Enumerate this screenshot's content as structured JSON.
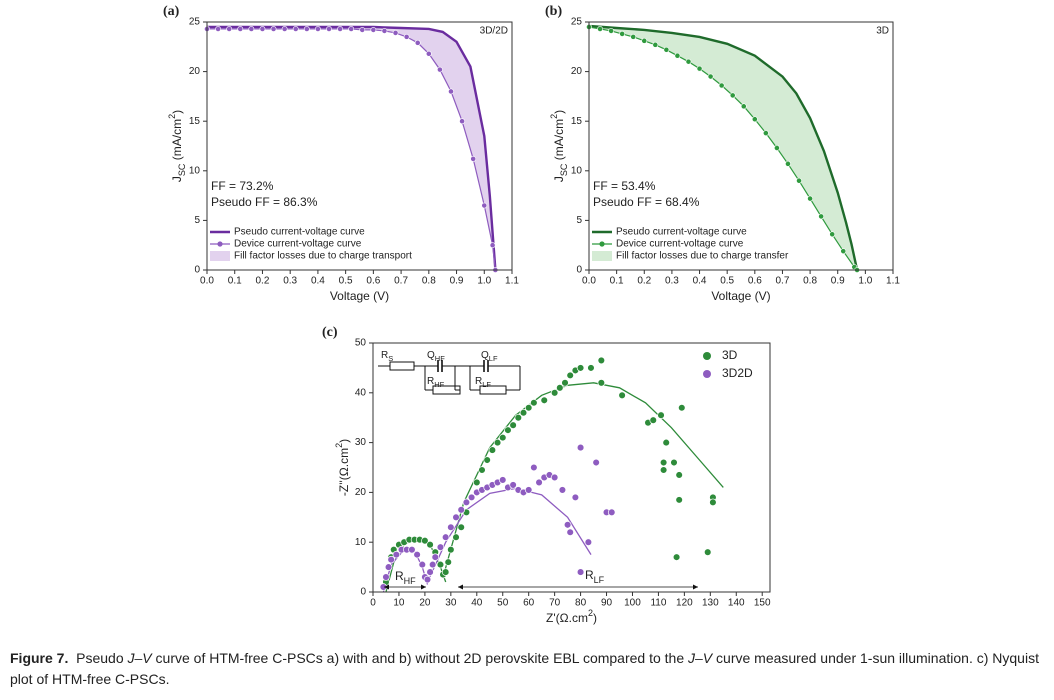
{
  "chart_data": [
    {
      "type": "line",
      "label": "(a)",
      "annotation": "3D/2D",
      "ff_texts": [
        "FF = 73.2%",
        "Pseudo FF = 86.3%"
      ],
      "xlabel": "Voltage (V)",
      "ylabel": [
        {
          "text": "J"
        },
        {
          "text": "SC",
          "script": "sub"
        },
        {
          "text": " (mA/cm"
        },
        {
          "text": "2",
          "script": "sup"
        },
        {
          "text": ")"
        }
      ],
      "xlim": [
        0,
        1.1
      ],
      "ylim": [
        0,
        25
      ],
      "xticks": [
        {
          "value": 0,
          "label": "0.0"
        },
        0.1,
        0.2,
        0.3,
        0.4,
        0.5,
        0.6,
        0.7,
        0.8,
        0.9,
        {
          "value": 1,
          "label": "1.0"
        },
        1.1
      ],
      "yticks": [
        0,
        5,
        10,
        15,
        20,
        25
      ],
      "series": [
        {
          "name": "Pseudo current-voltage curve",
          "color": "#6a2c9f",
          "marker": false,
          "x": [
            0,
            0.1,
            0.2,
            0.3,
            0.4,
            0.5,
            0.6,
            0.7,
            0.8,
            0.85,
            0.9,
            0.95,
            1.0,
            1.02,
            1.04
          ],
          "values": [
            24.5,
            24.5,
            24.5,
            24.5,
            24.5,
            24.5,
            24.5,
            24.4,
            24.3,
            24.0,
            23.0,
            20.5,
            13.5,
            7.5,
            0
          ]
        },
        {
          "name": "Device current-voltage curve",
          "color": "#8e5cbf",
          "marker": true,
          "x": [
            0,
            0.04,
            0.08,
            0.12,
            0.16,
            0.2,
            0.24,
            0.28,
            0.32,
            0.36,
            0.4,
            0.44,
            0.48,
            0.52,
            0.56,
            0.6,
            0.64,
            0.68,
            0.72,
            0.76,
            0.8,
            0.84,
            0.88,
            0.92,
            0.96,
            1.0,
            1.03,
            1.04
          ],
          "values": [
            24.3,
            24.3,
            24.3,
            24.3,
            24.3,
            24.3,
            24.3,
            24.3,
            24.3,
            24.3,
            24.3,
            24.3,
            24.3,
            24.3,
            24.2,
            24.2,
            24.1,
            23.9,
            23.5,
            22.9,
            21.8,
            20.2,
            18.0,
            15.0,
            11.2,
            6.5,
            2.5,
            0
          ]
        }
      ],
      "fill": {
        "name": "Fill factor losses due to charge transport",
        "color": "#e2d2ee"
      }
    },
    {
      "type": "line",
      "label": "(b)",
      "annotation": "3D",
      "ff_texts": [
        "FF = 53.4%",
        "Pseudo FF = 68.4%"
      ],
      "xlabel": "Voltage (V)",
      "ylabel": [
        {
          "text": "J"
        },
        {
          "text": "SC",
          "script": "sub"
        },
        {
          "text": " (mA/cm"
        },
        {
          "text": "2",
          "script": "sup"
        },
        {
          "text": ")"
        }
      ],
      "xlim": [
        0,
        1.1
      ],
      "ylim": [
        0,
        25
      ],
      "xticks": [
        {
          "value": 0,
          "label": "0.0"
        },
        0.1,
        0.2,
        0.3,
        0.4,
        0.5,
        0.6,
        0.7,
        0.8,
        0.9,
        {
          "value": 1,
          "label": "1.0"
        },
        1.1
      ],
      "yticks": [
        0,
        5,
        10,
        15,
        20,
        25
      ],
      "series": [
        {
          "name": "Pseudo current-voltage curve",
          "color": "#1f6b2b",
          "marker": false,
          "x": [
            0,
            0.1,
            0.2,
            0.3,
            0.4,
            0.5,
            0.6,
            0.7,
            0.75,
            0.8,
            0.85,
            0.9,
            0.93,
            0.95,
            0.97
          ],
          "values": [
            24.6,
            24.4,
            24.2,
            23.9,
            23.5,
            22.8,
            21.6,
            19.5,
            17.8,
            15.3,
            12.0,
            7.8,
            4.8,
            2.6,
            0
          ]
        },
        {
          "name": "Device current-voltage curve",
          "color": "#2f9a3e",
          "marker": true,
          "x": [
            0,
            0.04,
            0.08,
            0.12,
            0.16,
            0.2,
            0.24,
            0.28,
            0.32,
            0.36,
            0.4,
            0.44,
            0.48,
            0.52,
            0.56,
            0.6,
            0.64,
            0.68,
            0.72,
            0.76,
            0.8,
            0.84,
            0.88,
            0.92,
            0.96,
            0.97
          ],
          "values": [
            24.5,
            24.3,
            24.1,
            23.8,
            23.5,
            23.1,
            22.7,
            22.2,
            21.6,
            21.0,
            20.3,
            19.5,
            18.6,
            17.6,
            16.5,
            15.2,
            13.8,
            12.3,
            10.7,
            9.0,
            7.2,
            5.4,
            3.6,
            1.9,
            0.3,
            0
          ]
        }
      ],
      "fill": {
        "name": "Fill factor losses due to charge transfer",
        "color": "#d4ebd4"
      }
    },
    {
      "type": "scatter",
      "label": "(c)",
      "xlabel": [
        {
          "text": "Z'(Ω.cm"
        },
        {
          "text": "2",
          "script": "sup"
        },
        {
          "text": ")"
        }
      ],
      "ylabel": [
        {
          "text": "-Z''(Ω.cm"
        },
        {
          "text": "2",
          "script": "sup"
        },
        {
          "text": ")"
        }
      ],
      "xlim": [
        0,
        153
      ],
      "ylim": [
        0,
        50
      ],
      "xticks": [
        0,
        10,
        20,
        30,
        40,
        50,
        60,
        70,
        80,
        90,
        100,
        110,
        120,
        130,
        140,
        150
      ],
      "yticks": [
        0,
        10,
        20,
        30,
        40,
        50
      ],
      "series": [
        {
          "name": "3D",
          "color": "#2e8b3a",
          "x": [
            5,
            6,
            7,
            8,
            10,
            12,
            14,
            16,
            18,
            20,
            22,
            24,
            26,
            27,
            28,
            29,
            30,
            32,
            34,
            36,
            38,
            40,
            42,
            44,
            46,
            48,
            50,
            52,
            54,
            56,
            58,
            60,
            62,
            66,
            70,
            72,
            74,
            76,
            78,
            80,
            84,
            88,
            88,
            96,
            106,
            108,
            111,
            113,
            112,
            112,
            116,
            119,
            118,
            118,
            117,
            129,
            131,
            131
          ],
          "values": [
            2,
            5,
            7,
            8.5,
            9.5,
            10,
            10.5,
            10.5,
            10.5,
            10.3,
            9.5,
            8,
            5.5,
            3.5,
            4,
            6,
            8.5,
            11,
            13,
            16,
            19,
            22,
            24.5,
            26.5,
            28.5,
            30,
            31,
            32.5,
            33.5,
            35,
            36,
            37,
            38,
            38.5,
            40,
            41,
            42,
            43.5,
            44.5,
            45,
            45,
            46.5,
            42,
            39.5,
            34,
            34.5,
            35.5,
            30,
            26,
            24.5,
            26,
            37,
            23.5,
            18.5,
            7,
            8,
            19,
            18
          ],
          "fit": {
            "x": [
              5,
              8,
              12,
              17,
              22,
              26,
              28,
              null,
              27,
              35,
              45,
              55,
              65,
              75,
              85,
              95,
              105,
              115,
              125,
              135
            ],
            "values": [
              0,
              6,
              9.5,
              10.8,
              9.5,
              5,
              2,
              null,
              3,
              18,
              29,
              35.5,
              39.5,
              41.5,
              42,
              41,
              38,
              33,
              27,
              21
            ]
          }
        },
        {
          "name": "3D2D",
          "color": "#8e5cc0",
          "x": [
            4,
            5,
            6,
            7,
            9,
            11,
            13,
            15,
            17,
            19,
            20,
            21,
            22,
            23,
            24,
            26,
            28,
            30,
            32,
            34,
            36,
            38,
            40,
            42,
            44,
            46,
            48,
            50,
            52,
            54,
            56,
            58,
            60,
            62,
            64,
            66,
            68,
            70,
            73,
            75,
            76,
            78,
            80,
            83,
            86,
            90,
            92,
            80
          ],
          "values": [
            1,
            3,
            5,
            6.5,
            7.5,
            8.5,
            8.5,
            8.5,
            7.5,
            5.5,
            3,
            2.5,
            4,
            5.5,
            7,
            9,
            11,
            13,
            15,
            16.5,
            18,
            19,
            20,
            20.5,
            21,
            21.5,
            22,
            22.5,
            21,
            21.5,
            20.5,
            20,
            20.5,
            25,
            22,
            23,
            23.5,
            23,
            20.5,
            13.5,
            12,
            19,
            29,
            10,
            26,
            16,
            16,
            4
          ],
          "fit": {
            "x": [
              4,
              7,
              12,
              16,
              19,
              21,
              null,
              21,
              28,
              36,
              45,
              55,
              65,
              75,
              84
            ],
            "values": [
              0,
              5.5,
              8.5,
              8.3,
              5,
              1.5,
              null,
              2,
              10,
              16.5,
              19.8,
              20.8,
              19.5,
              15,
              7.5
            ]
          }
        }
      ],
      "circuit_labels": [
        [
          {
            "text": "R"
          },
          {
            "text": "S",
            "script": "sub"
          }
        ],
        [
          {
            "text": "Q"
          },
          {
            "text": "HF",
            "script": "sub"
          }
        ],
        [
          {
            "text": "Q"
          },
          {
            "text": "LF",
            "script": "sub"
          }
        ],
        [
          {
            "text": "R"
          },
          {
            "text": "HF",
            "script": "sub"
          }
        ],
        [
          {
            "text": "R"
          },
          {
            "text": "LF",
            "script": "sub"
          }
        ]
      ],
      "annotations": [
        [
          {
            "text": "R"
          },
          {
            "text": "HF",
            "script": "sub"
          }
        ],
        [
          {
            "text": "R"
          },
          {
            "text": "LF",
            "script": "sub"
          }
        ]
      ]
    }
  ],
  "caption": [
    {
      "text": "Figure 7.",
      "style": "bold"
    },
    {
      "text": "  Pseudo "
    },
    {
      "text": "J–V",
      "style": "italic"
    },
    {
      "text": " curve of HTM-free C-PSCs a) with and b) without 2D perovskite EBL compared to the "
    },
    {
      "text": "J–V",
      "style": "italic"
    },
    {
      "text": " curve measured under 1-sun illumination. c) Nyquist plot of HTM-free C-PSCs."
    }
  ]
}
